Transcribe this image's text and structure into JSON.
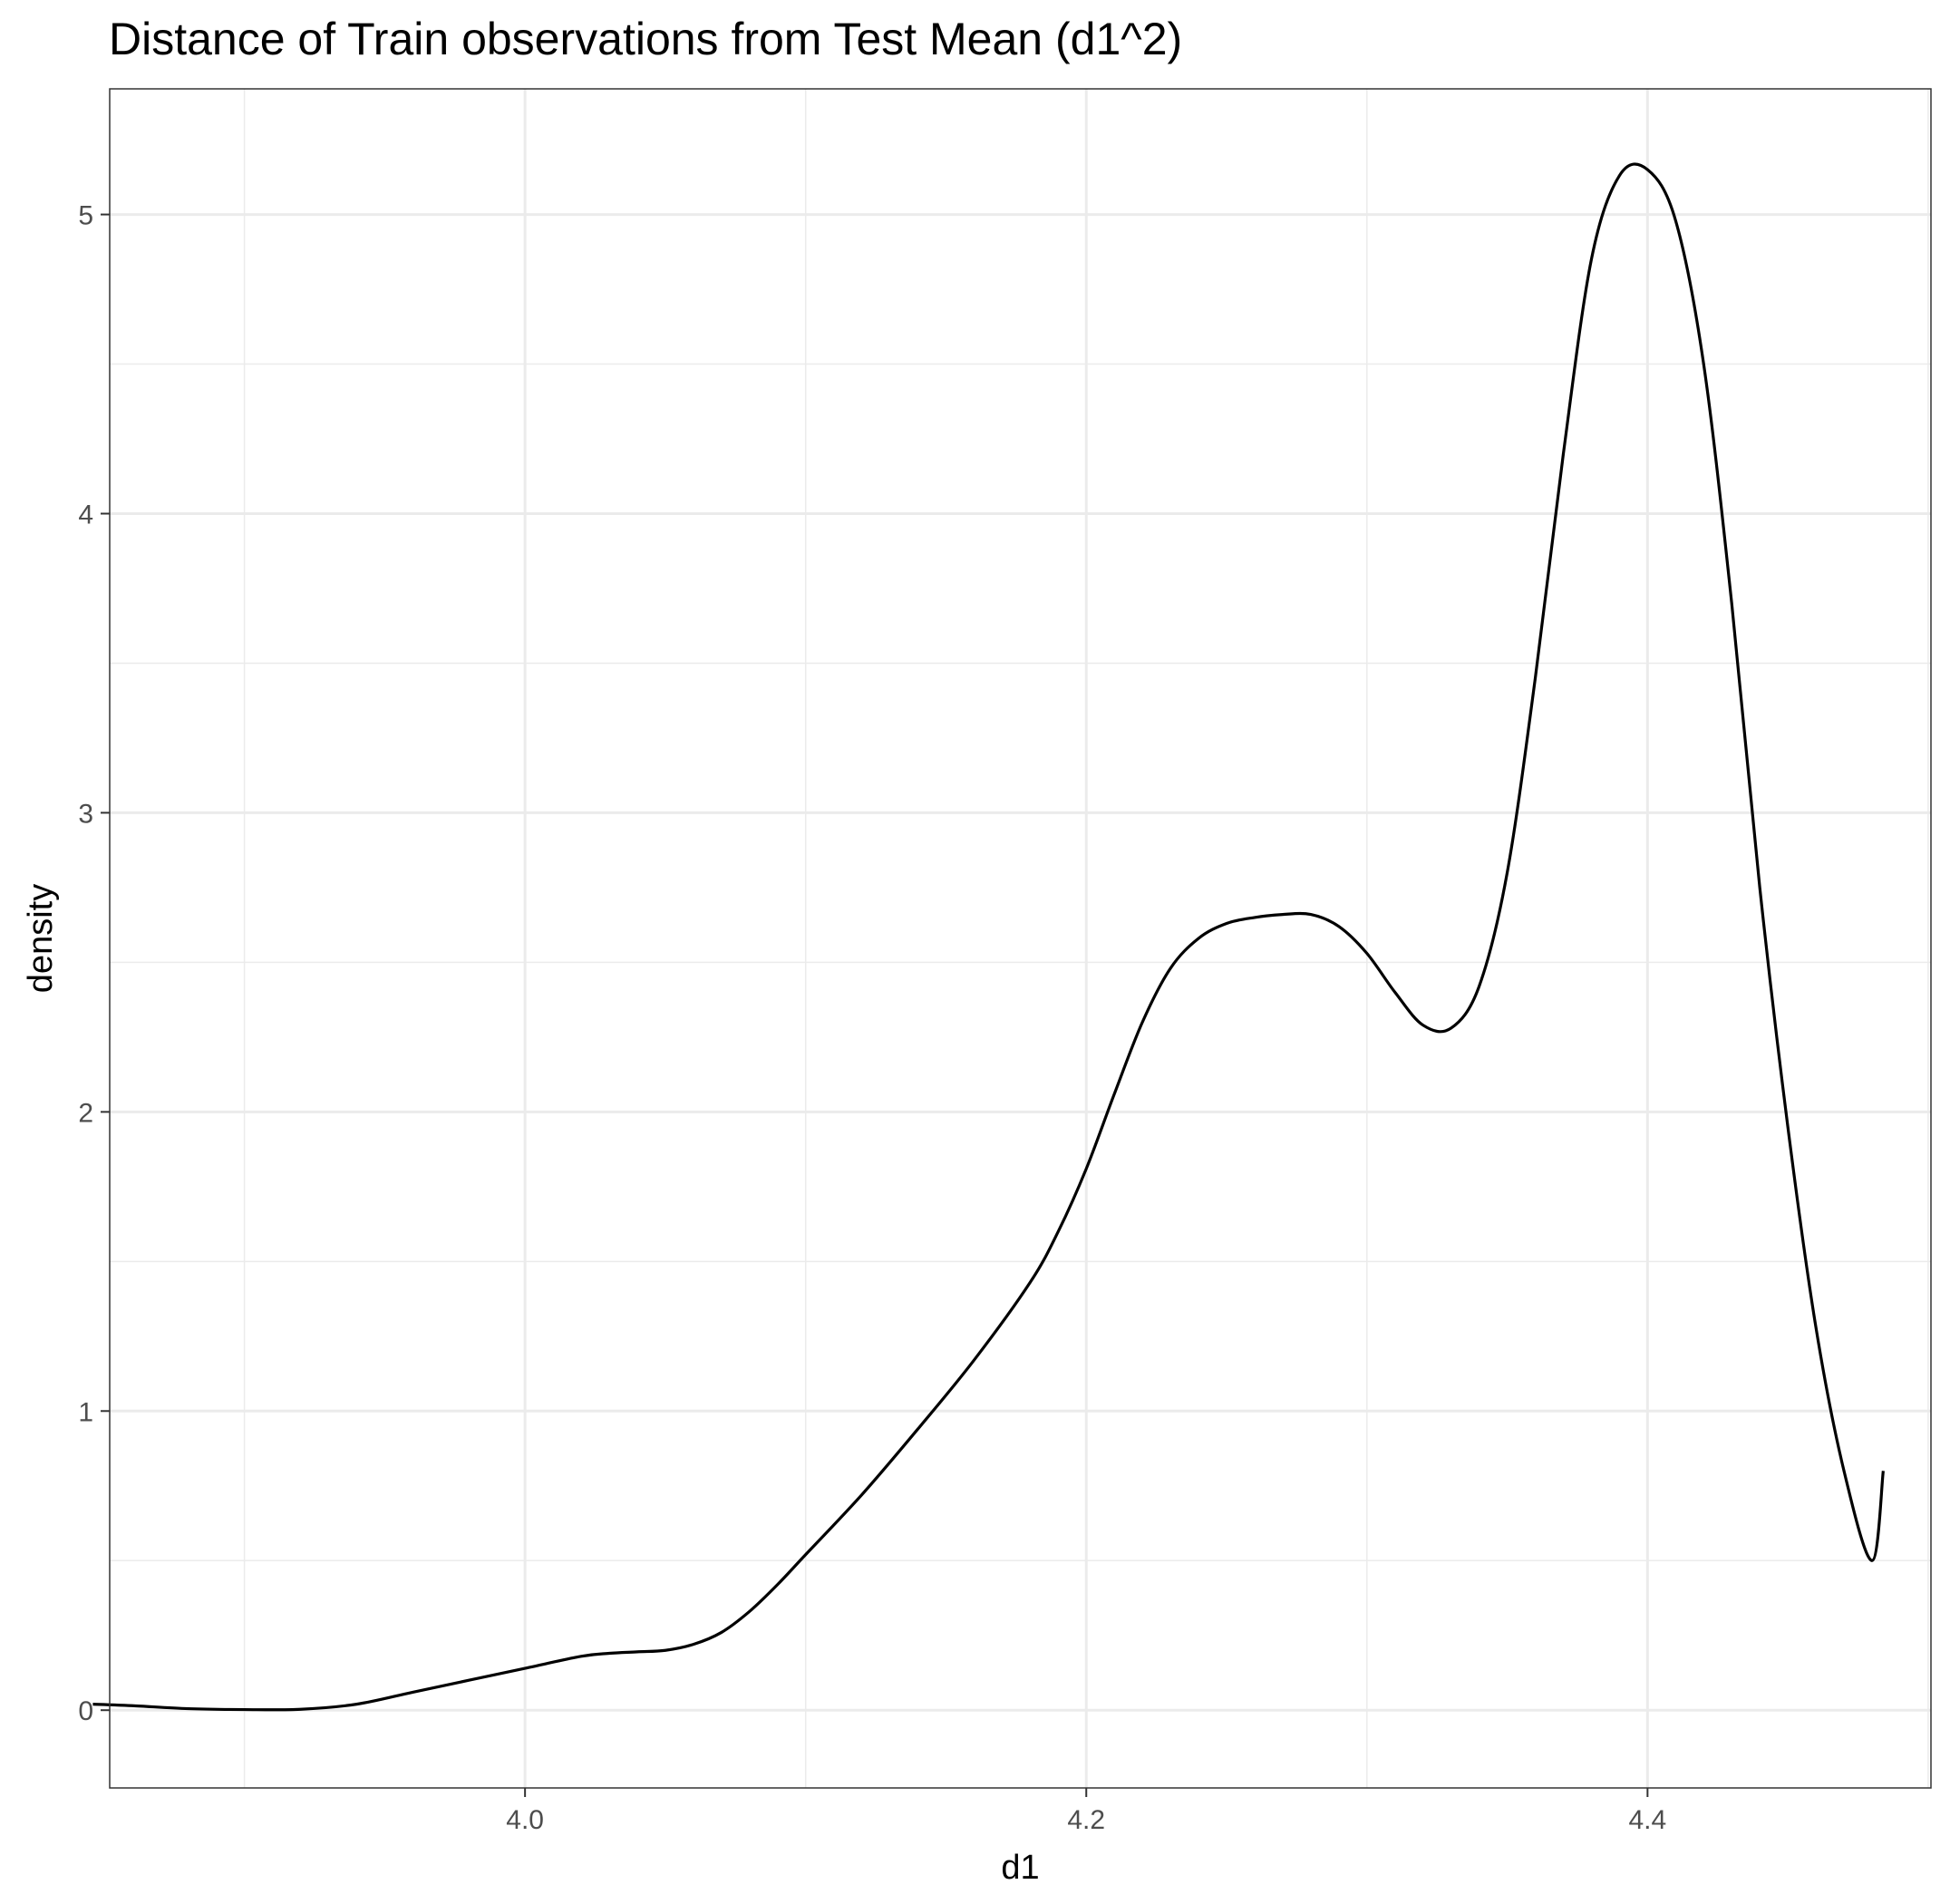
{
  "chart_data": {
    "type": "line",
    "title": "Distance of Train observations from Test Mean (d1^2)",
    "xlabel": "d1",
    "ylabel": "density",
    "xlim": [
      3.852,
      4.501
    ],
    "ylim": [
      -0.26,
      5.42
    ],
    "x_ticks": [
      4.0,
      4.2,
      4.4
    ],
    "x_tick_labels": [
      "4.0",
      "4.2",
      "4.4"
    ],
    "y_ticks": [
      0,
      1,
      2,
      3,
      4,
      5
    ],
    "y_tick_labels": [
      "0",
      "1",
      "2",
      "3",
      "4",
      "5"
    ],
    "grid": true,
    "series": [
      {
        "x": [
          3.846,
          3.86,
          3.88,
          3.9,
          3.92,
          3.94,
          3.96,
          3.98,
          4.0,
          4.02,
          4.03,
          4.04,
          4.05,
          4.06,
          4.07,
          4.08,
          4.09,
          4.1,
          4.12,
          4.14,
          4.16,
          4.18,
          4.19,
          4.2,
          4.21,
          4.22,
          4.23,
          4.24,
          4.25,
          4.26,
          4.27,
          4.28,
          4.29,
          4.3,
          4.31,
          4.32,
          4.33,
          4.34,
          4.35,
          4.36,
          4.37,
          4.38,
          4.39,
          4.4,
          4.41,
          4.42,
          4.43,
          4.44,
          4.45,
          4.46,
          4.47,
          4.48,
          4.484
        ],
        "y": [
          0.02,
          0.015,
          0.005,
          0.002,
          0.003,
          0.02,
          0.06,
          0.1,
          0.14,
          0.18,
          0.19,
          0.195,
          0.2,
          0.22,
          0.26,
          0.33,
          0.42,
          0.52,
          0.72,
          0.94,
          1.17,
          1.43,
          1.6,
          1.81,
          2.06,
          2.3,
          2.48,
          2.58,
          2.63,
          2.65,
          2.66,
          2.66,
          2.62,
          2.53,
          2.4,
          2.29,
          2.28,
          2.42,
          2.8,
          3.45,
          4.2,
          4.85,
          5.13,
          5.15,
          4.98,
          4.5,
          3.7,
          2.75,
          1.95,
          1.28,
          0.8,
          0.5,
          0.8
        ]
      }
    ]
  }
}
